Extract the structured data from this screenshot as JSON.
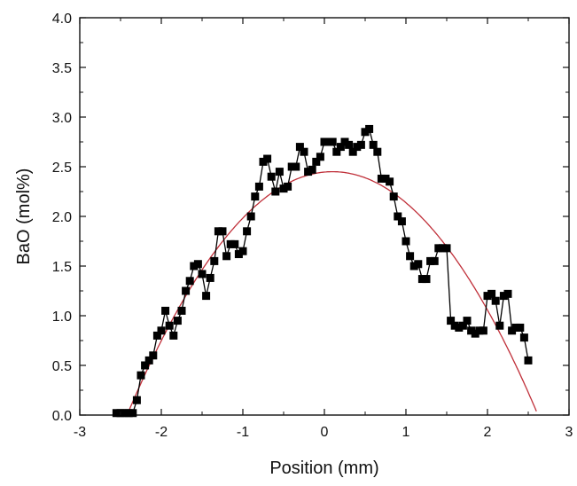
{
  "chart_data": {
    "type": "scatter",
    "xlabel": "Position (mm)",
    "ylabel": "BaO (mol%)",
    "xlim": [
      -3,
      3
    ],
    "ylim": [
      0,
      4
    ],
    "x_ticks": [
      "-3",
      "-2",
      "-1",
      "0",
      "1",
      "2",
      "3"
    ],
    "y_ticks": [
      "0.0",
      "0.5",
      "1.0",
      "1.5",
      "2.0",
      "2.5",
      "3.0",
      "3.5",
      "4.0"
    ],
    "grid": false,
    "legend": "none",
    "series": [
      {
        "kind": "line-markers",
        "color": "#000000",
        "marker": "square",
        "points": [
          [
            -2.55,
            0.02
          ],
          [
            -2.5,
            0.02
          ],
          [
            -2.45,
            0.02
          ],
          [
            -2.4,
            0.02
          ],
          [
            -2.35,
            0.02
          ],
          [
            -2.3,
            0.15
          ],
          [
            -2.25,
            0.4
          ],
          [
            -2.2,
            0.5
          ],
          [
            -2.15,
            0.55
          ],
          [
            -2.1,
            0.6
          ],
          [
            -2.05,
            0.8
          ],
          [
            -2.0,
            0.85
          ],
          [
            -1.95,
            1.05
          ],
          [
            -1.9,
            0.9
          ],
          [
            -1.85,
            0.8
          ],
          [
            -1.8,
            0.95
          ],
          [
            -1.75,
            1.05
          ],
          [
            -1.7,
            1.25
          ],
          [
            -1.65,
            1.35
          ],
          [
            -1.6,
            1.5
          ],
          [
            -1.55,
            1.52
          ],
          [
            -1.5,
            1.42
          ],
          [
            -1.45,
            1.2
          ],
          [
            -1.4,
            1.38
          ],
          [
            -1.35,
            1.55
          ],
          [
            -1.3,
            1.85
          ],
          [
            -1.25,
            1.85
          ],
          [
            -1.2,
            1.6
          ],
          [
            -1.15,
            1.72
          ],
          [
            -1.1,
            1.72
          ],
          [
            -1.05,
            1.62
          ],
          [
            -1.0,
            1.65
          ],
          [
            -0.95,
            1.85
          ],
          [
            -0.9,
            2.0
          ],
          [
            -0.85,
            2.2
          ],
          [
            -0.8,
            2.3
          ],
          [
            -0.75,
            2.55
          ],
          [
            -0.7,
            2.58
          ],
          [
            -0.65,
            2.4
          ],
          [
            -0.6,
            2.25
          ],
          [
            -0.55,
            2.45
          ],
          [
            -0.5,
            2.28
          ],
          [
            -0.45,
            2.3
          ],
          [
            -0.4,
            2.5
          ],
          [
            -0.35,
            2.5
          ],
          [
            -0.3,
            2.7
          ],
          [
            -0.25,
            2.65
          ],
          [
            -0.2,
            2.45
          ],
          [
            -0.15,
            2.47
          ],
          [
            -0.1,
            2.55
          ],
          [
            -0.05,
            2.6
          ],
          [
            0.0,
            2.75
          ],
          [
            0.05,
            2.75
          ],
          [
            0.1,
            2.75
          ],
          [
            0.15,
            2.65
          ],
          [
            0.2,
            2.7
          ],
          [
            0.25,
            2.75
          ],
          [
            0.3,
            2.72
          ],
          [
            0.35,
            2.65
          ],
          [
            0.4,
            2.7
          ],
          [
            0.45,
            2.72
          ],
          [
            0.5,
            2.85
          ],
          [
            0.55,
            2.88
          ],
          [
            0.6,
            2.72
          ],
          [
            0.65,
            2.65
          ],
          [
            0.7,
            2.38
          ],
          [
            0.75,
            2.38
          ],
          [
            0.8,
            2.35
          ],
          [
            0.85,
            2.2
          ],
          [
            0.9,
            2.0
          ],
          [
            0.95,
            1.95
          ],
          [
            1.0,
            1.75
          ],
          [
            1.05,
            1.6
          ],
          [
            1.1,
            1.5
          ],
          [
            1.15,
            1.52
          ],
          [
            1.2,
            1.37
          ],
          [
            1.25,
            1.37
          ],
          [
            1.3,
            1.55
          ],
          [
            1.35,
            1.55
          ],
          [
            1.4,
            1.68
          ],
          [
            1.45,
            1.68
          ],
          [
            1.5,
            1.68
          ],
          [
            1.55,
            0.95
          ],
          [
            1.6,
            0.9
          ],
          [
            1.65,
            0.88
          ],
          [
            1.7,
            0.9
          ],
          [
            1.75,
            0.95
          ],
          [
            1.8,
            0.85
          ],
          [
            1.85,
            0.82
          ],
          [
            1.9,
            0.85
          ],
          [
            1.95,
            0.85
          ],
          [
            2.0,
            1.2
          ],
          [
            2.05,
            1.22
          ],
          [
            2.1,
            1.15
          ],
          [
            2.15,
            0.9
          ],
          [
            2.2,
            1.2
          ],
          [
            2.25,
            1.22
          ],
          [
            2.3,
            0.85
          ],
          [
            2.35,
            0.88
          ],
          [
            2.4,
            0.88
          ],
          [
            2.45,
            0.78
          ],
          [
            2.5,
            0.55
          ]
        ]
      },
      {
        "kind": "fit-curve",
        "color": "#c0303a",
        "x_range": [
          -2.6,
          2.6
        ],
        "peak_x": 0.12,
        "peak_y": 2.45,
        "roots": [
          -2.42,
          2.62
        ]
      }
    ]
  }
}
